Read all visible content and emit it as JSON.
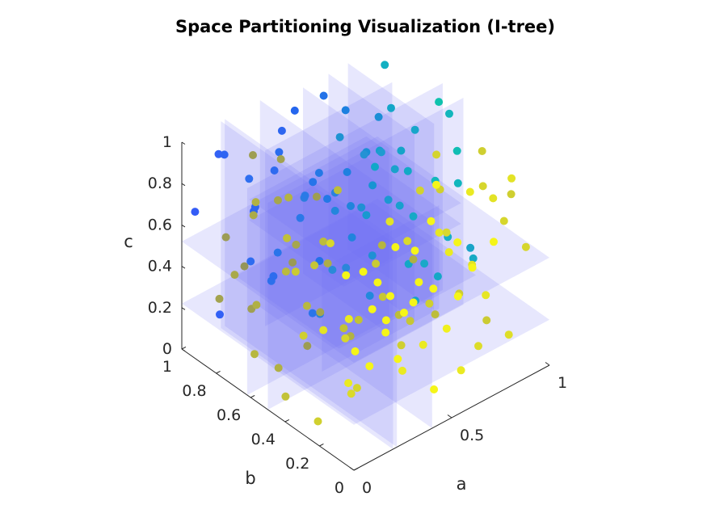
{
  "chart_data": {
    "type": "scatter",
    "subtype": "3d-scatter-with-partition-planes",
    "title": "Space Partitioning Visualization (I-tree)",
    "xlabel": "a",
    "ylabel": "b",
    "zlabel": "c",
    "xlim": [
      0,
      1
    ],
    "ylim": [
      0,
      1
    ],
    "zlim": [
      0,
      1
    ],
    "xticks": [
      "0",
      "0.5",
      "1"
    ],
    "yticks": [
      "0",
      "0.2",
      "0.4",
      "0.6",
      "0.8",
      "1"
    ],
    "zticks": [
      "0",
      "0.2",
      "0.4",
      "0.6",
      "0.8",
      "1"
    ],
    "grid": false,
    "legend": "none",
    "colormap": "parula",
    "colors": {
      "plane_fill": "#6f6ff5",
      "axis": "#262626",
      "title": "#000000"
    },
    "partition_planes": [
      {
        "axis": "a",
        "value": 0.2,
        "b_range": [
          0,
          1
        ],
        "c_range": [
          0,
          1
        ]
      },
      {
        "axis": "a",
        "value": 0.22,
        "b_range": [
          0,
          1
        ],
        "c_range": [
          0,
          1
        ]
      },
      {
        "axis": "a",
        "value": 0.4,
        "b_range": [
          0,
          1
        ],
        "c_range": [
          0,
          1
        ]
      },
      {
        "axis": "b",
        "value": 0.5,
        "a_range": [
          0,
          1
        ],
        "c_range": [
          0,
          1
        ]
      },
      {
        "axis": "b",
        "value": 0.62,
        "a_range": [
          0,
          1
        ],
        "c_range": [
          0,
          1
        ]
      },
      {
        "axis": "c",
        "value": 0.22,
        "a_range": [
          0,
          1
        ],
        "b_range": [
          0,
          1
        ]
      },
      {
        "axis": "c",
        "value": 0.52,
        "a_range": [
          0,
          1
        ],
        "b_range": [
          0,
          1
        ]
      },
      {
        "axis": "a",
        "value": 0.62,
        "b_range": [
          0.5,
          1
        ],
        "c_range": [
          0.05,
          0.95
        ]
      },
      {
        "axis": "a",
        "value": 0.75,
        "b_range": [
          0.5,
          1
        ],
        "c_range": [
          0.05,
          0.95
        ]
      },
      {
        "axis": "b",
        "value": 0.8,
        "a_range": [
          0.25,
          0.9
        ],
        "c_range": [
          0.1,
          0.95
        ]
      },
      {
        "axis": "a",
        "value": 0.85,
        "b_range": [
          0.5,
          1
        ],
        "c_range": [
          0.05,
          0.95
        ]
      },
      {
        "axis": "c",
        "value": 0.5,
        "a_range": [
          0.3,
          0.9
        ],
        "b_range": [
          0.4,
          0.95
        ]
      },
      {
        "axis": "c",
        "value": 0.6,
        "a_range": [
          0.3,
          0.9
        ],
        "b_range": [
          0.4,
          0.95
        ]
      },
      {
        "axis": "b",
        "value": 0.3,
        "a_range": [
          0.1,
          0.7
        ],
        "c_range": [
          0.25,
          0.75
        ]
      },
      {
        "axis": "c",
        "value": 0.42,
        "a_range": [
          0.1,
          0.8
        ],
        "b_range": [
          0.2,
          0.8
        ]
      }
    ],
    "points": [
      {
        "a": 0.05,
        "b": 0.05,
        "c": 0.52,
        "color": "#f5f519"
      },
      {
        "a": 0.08,
        "b": 0.12,
        "c": 0.62,
        "color": "#eaea22"
      },
      {
        "a": 0.12,
        "b": 0.03,
        "c": 0.7,
        "color": "#f5f519"
      },
      {
        "a": 0.15,
        "b": 0.08,
        "c": 0.38,
        "color": "#f5f519"
      },
      {
        "a": 0.02,
        "b": 0.2,
        "c": 0.55,
        "color": "#e3e326"
      },
      {
        "a": 0.18,
        "b": 0.15,
        "c": 0.78,
        "color": "#f5f519"
      },
      {
        "a": 0.2,
        "b": 0.04,
        "c": 0.6,
        "color": "#f5f519"
      },
      {
        "a": 0.25,
        "b": 0.1,
        "c": 0.48,
        "color": "#f5f519"
      },
      {
        "a": 0.1,
        "b": 0.25,
        "c": 0.9,
        "color": "#d8d82c"
      },
      {
        "a": 0.3,
        "b": 0.05,
        "c": 0.58,
        "color": "#f5f519"
      },
      {
        "a": 0.28,
        "b": 0.18,
        "c": 0.66,
        "color": "#f5f519"
      },
      {
        "a": 0.35,
        "b": 0.02,
        "c": 0.72,
        "color": "#f5f519"
      },
      {
        "a": 0.05,
        "b": 0.35,
        "c": 0.42,
        "color": "#cfcf30"
      },
      {
        "a": 0.4,
        "b": 0.1,
        "c": 0.8,
        "color": "#f5f519"
      },
      {
        "a": 0.38,
        "b": 0.22,
        "c": 0.52,
        "color": "#f5f519"
      },
      {
        "a": 0.45,
        "b": 0.05,
        "c": 0.62,
        "color": "#f5f519"
      },
      {
        "a": 0.22,
        "b": 0.3,
        "c": 0.35,
        "color": "#d6d62d"
      },
      {
        "a": 0.5,
        "b": 0.12,
        "c": 0.88,
        "color": "#f5f519"
      },
      {
        "a": 0.48,
        "b": 0.2,
        "c": 0.45,
        "color": "#f5f519"
      },
      {
        "a": 0.55,
        "b": 0.02,
        "c": 0.55,
        "color": "#f5f519"
      },
      {
        "a": 0.15,
        "b": 0.4,
        "c": 0.68,
        "color": "#c6c636"
      },
      {
        "a": 0.6,
        "b": 0.08,
        "c": 0.75,
        "color": "#f5f519"
      },
      {
        "a": 0.58,
        "b": 0.18,
        "c": 0.98,
        "color": "#f5f519"
      },
      {
        "a": 0.65,
        "b": 0.05,
        "c": 0.62,
        "color": "#f5f519"
      },
      {
        "a": 0.08,
        "b": 0.48,
        "c": 0.8,
        "color": "#c0c03a"
      },
      {
        "a": 0.7,
        "b": 0.12,
        "c": 0.92,
        "color": "#eaea22"
      },
      {
        "a": 0.68,
        "b": 0.22,
        "c": 0.58,
        "color": "#eaea22"
      },
      {
        "a": 0.75,
        "b": 0.04,
        "c": 0.7,
        "color": "#f5f519"
      },
      {
        "a": 0.3,
        "b": 0.4,
        "c": 0.3,
        "color": "#c2c234"
      },
      {
        "a": 0.8,
        "b": 0.1,
        "c": 0.85,
        "color": "#e3e326"
      },
      {
        "a": 0.78,
        "b": 0.2,
        "c": 0.48,
        "color": "#e3e326"
      },
      {
        "a": 0.85,
        "b": 0.05,
        "c": 0.95,
        "color": "#e3e326"
      },
      {
        "a": 0.2,
        "b": 0.5,
        "c": 0.4,
        "color": "#b8b840"
      },
      {
        "a": 0.9,
        "b": 0.15,
        "c": 0.66,
        "color": "#d6d62d"
      },
      {
        "a": 0.88,
        "b": 0.25,
        "c": 0.78,
        "color": "#d6d62d"
      },
      {
        "a": 0.95,
        "b": 0.08,
        "c": 0.55,
        "color": "#d6d62d"
      },
      {
        "a": 0.02,
        "b": 0.6,
        "c": 0.2,
        "color": "#b7b73f"
      },
      {
        "a": 0.92,
        "b": 0.3,
        "c": 0.9,
        "color": "#cfcf30"
      },
      {
        "a": 0.98,
        "b": 0.2,
        "c": 0.72,
        "color": "#cfcf30"
      },
      {
        "a": 0.35,
        "b": 0.55,
        "c": 0.5,
        "color": "#adad48"
      },
      {
        "a": 0.1,
        "b": 0.68,
        "c": 0.35,
        "color": "#b0b044"
      },
      {
        "a": 0.42,
        "b": 0.45,
        "c": 0.25,
        "color": "#c2c234"
      },
      {
        "a": 0.25,
        "b": 0.62,
        "c": 0.6,
        "color": "#a6a64e"
      },
      {
        "a": 0.05,
        "b": 0.75,
        "c": 0.48,
        "color": "#a9a94a"
      },
      {
        "a": 0.5,
        "b": 0.4,
        "c": 0.35,
        "color": "#c6c636"
      },
      {
        "a": 0.18,
        "b": 0.8,
        "c": 0.22,
        "color": "#a0a052"
      },
      {
        "a": 0.55,
        "b": 0.35,
        "c": 0.12,
        "color": "#cfcf30"
      },
      {
        "a": 0.32,
        "b": 0.72,
        "c": 0.42,
        "color": "#9a9a56"
      },
      {
        "a": 0.6,
        "b": 0.42,
        "c": 0.2,
        "color": "#bdbd3a"
      },
      {
        "a": 0.12,
        "b": 0.88,
        "c": 0.55,
        "color": "#9c9c55"
      },
      {
        "a": 0.65,
        "b": 0.3,
        "c": 0.3,
        "color": "#cfcf30"
      },
      {
        "a": 0.4,
        "b": 0.65,
        "c": 0.18,
        "color": "#a4a44f"
      },
      {
        "a": 0.7,
        "b": 0.45,
        "c": 0.4,
        "color": "#b0b044"
      },
      {
        "a": 0.25,
        "b": 0.92,
        "c": 0.32,
        "color": "#95955a"
      },
      {
        "a": 0.75,
        "b": 0.38,
        "c": 0.15,
        "color": "#bdbd3a"
      },
      {
        "a": 0.45,
        "b": 0.8,
        "c": 0.62,
        "color": "#2b7ee0"
      },
      {
        "a": 0.8,
        "b": 0.5,
        "c": 0.3,
        "color": "#1aa8c8"
      },
      {
        "a": 0.3,
        "b": 0.95,
        "c": 0.7,
        "color": "#2f6ff0"
      },
      {
        "a": 0.85,
        "b": 0.42,
        "c": 0.45,
        "color": "#17b0c4"
      },
      {
        "a": 0.5,
        "b": 0.88,
        "c": 0.45,
        "color": "#2a78e8"
      },
      {
        "a": 0.9,
        "b": 0.55,
        "c": 0.62,
        "color": "#12b8bb"
      },
      {
        "a": 0.55,
        "b": 0.75,
        "c": 0.25,
        "color": "#2a8ad8"
      },
      {
        "a": 0.95,
        "b": 0.48,
        "c": 0.78,
        "color": "#10bdb4"
      },
      {
        "a": 0.6,
        "b": 0.92,
        "c": 0.55,
        "color": "#2574ea"
      },
      {
        "a": 0.98,
        "b": 0.62,
        "c": 0.92,
        "color": "#0fc2ad"
      },
      {
        "a": 0.65,
        "b": 0.82,
        "c": 0.8,
        "color": "#1f93d2"
      },
      {
        "a": 0.92,
        "b": 0.7,
        "c": 0.35,
        "color": "#16a9c6"
      },
      {
        "a": 0.7,
        "b": 0.95,
        "c": 0.4,
        "color": "#2278e6"
      },
      {
        "a": 0.88,
        "b": 0.85,
        "c": 0.6,
        "color": "#139fcc"
      },
      {
        "a": 0.75,
        "b": 0.78,
        "c": 0.7,
        "color": "#1a8ed6"
      },
      {
        "a": 0.95,
        "b": 0.9,
        "c": 0.95,
        "color": "#12b0c2"
      },
      {
        "a": 0.8,
        "b": 0.92,
        "c": 0.18,
        "color": "#2084dd"
      },
      {
        "a": 0.85,
        "b": 0.75,
        "c": 0.88,
        "color": "#14a6c8"
      },
      {
        "a": 0.98,
        "b": 0.8,
        "c": 0.48,
        "color": "#11aac6"
      },
      {
        "a": 0.2,
        "b": 0.98,
        "c": 0.85,
        "color": "#2f64f2"
      },
      {
        "a": 0.38,
        "b": 0.85,
        "c": 0.95,
        "color": "#2d66f0"
      },
      {
        "a": 0.48,
        "b": 0.98,
        "c": 0.72,
        "color": "#2a6cee"
      },
      {
        "a": 0.58,
        "b": 0.6,
        "c": 0.88,
        "color": "#2592d4"
      },
      {
        "a": 0.68,
        "b": 0.68,
        "c": 0.1,
        "color": "#2189dc"
      },
      {
        "a": 0.72,
        "b": 0.58,
        "c": 0.75,
        "color": "#1aa2cc"
      },
      {
        "a": 0.15,
        "b": 0.95,
        "c": 0.12,
        "color": "#3260f5"
      },
      {
        "a": 0.05,
        "b": 0.98,
        "c": 0.65,
        "color": "#345cf6"
      },
      {
        "a": 0.28,
        "b": 0.78,
        "c": 0.85,
        "color": "#2e6af0"
      },
      {
        "a": 0.42,
        "b": 0.92,
        "c": 0.3,
        "color": "#2a74ea"
      },
      {
        "a": 0.52,
        "b": 0.7,
        "c": 0.58,
        "color": "#2486dc"
      },
      {
        "a": 0.62,
        "b": 0.88,
        "c": 0.98,
        "color": "#2372e8"
      },
      {
        "a": 0.78,
        "b": 0.62,
        "c": 0.52,
        "color": "#18a0ce"
      },
      {
        "a": 0.82,
        "b": 0.98,
        "c": 0.75,
        "color": "#1c80e0"
      },
      {
        "a": 0.9,
        "b": 0.95,
        "c": 0.22,
        "color": "#1899d0"
      },
      {
        "a": 0.35,
        "b": 0.98,
        "c": 0.5,
        "color": "#2c64f2"
      },
      {
        "a": 0.45,
        "b": 0.62,
        "c": 0.75,
        "color": "#2a82de"
      },
      {
        "a": 0.58,
        "b": 0.5,
        "c": 0.95,
        "color": "#1e9cd0"
      },
      {
        "a": 0.66,
        "b": 0.55,
        "c": 0.65,
        "color": "#1c98d2"
      },
      {
        "a": 0.1,
        "b": 0.9,
        "c": 0.95,
        "color": "#3362f5"
      },
      {
        "a": 0.22,
        "b": 0.85,
        "c": 0.4,
        "color": "#2e6cf0"
      },
      {
        "a": 0.32,
        "b": 0.58,
        "c": 0.82,
        "color": "#9e9e53"
      },
      {
        "a": 0.42,
        "b": 0.35,
        "c": 0.58,
        "color": "#caca34"
      },
      {
        "a": 0.52,
        "b": 0.28,
        "c": 0.68,
        "color": "#dada2b"
      },
      {
        "a": 0.62,
        "b": 0.32,
        "c": 0.85,
        "color": "#d2d22f"
      },
      {
        "a": 0.72,
        "b": 0.28,
        "c": 0.62,
        "color": "#d8d82c"
      },
      {
        "a": 0.82,
        "b": 0.32,
        "c": 0.25,
        "color": "#cdcd31"
      },
      {
        "a": 0.15,
        "b": 0.55,
        "c": 0.92,
        "color": "#b4b442"
      },
      {
        "a": 0.02,
        "b": 0.42,
        "c": 0.1,
        "color": "#c2c238"
      },
      {
        "a": 0.08,
        "b": 0.3,
        "c": 0.02,
        "color": "#d0d02f"
      },
      {
        "a": 0.18,
        "b": 0.22,
        "c": 0.15,
        "color": "#dada2a"
      },
      {
        "a": 0.28,
        "b": 0.3,
        "c": 0.08,
        "color": "#d4d42d"
      },
      {
        "a": 0.38,
        "b": 0.15,
        "c": 0.2,
        "color": "#eaea22"
      },
      {
        "a": 0.48,
        "b": 0.08,
        "c": 0.1,
        "color": "#f5f519"
      },
      {
        "a": 0.58,
        "b": 0.12,
        "c": 0.32,
        "color": "#f0f01d"
      },
      {
        "a": 0.68,
        "b": 0.15,
        "c": 0.05,
        "color": "#eaea22"
      },
      {
        "a": 0.78,
        "b": 0.12,
        "c": 0.38,
        "color": "#e6e624"
      },
      {
        "a": 0.88,
        "b": 0.1,
        "c": 0.15,
        "color": "#dede28"
      },
      {
        "a": 0.96,
        "b": 0.32,
        "c": 0.05,
        "color": "#cbcb33"
      },
      {
        "a": 0.98,
        "b": 0.42,
        "c": 0.28,
        "color": "#18aac4"
      },
      {
        "a": 0.94,
        "b": 0.58,
        "c": 0.12,
        "color": "#14a8c6"
      },
      {
        "a": 0.86,
        "b": 0.62,
        "c": 0.02,
        "color": "#16a2ca"
      },
      {
        "a": 0.76,
        "b": 0.72,
        "c": 0.9,
        "color": "#1b8ed6"
      },
      {
        "a": 0.66,
        "b": 0.95,
        "c": 0.12,
        "color": "#2370e8"
      },
      {
        "a": 0.56,
        "b": 0.98,
        "c": 0.88,
        "color": "#2566ee"
      },
      {
        "a": 0.46,
        "b": 0.72,
        "c": 0.1,
        "color": "#2a80de"
      },
      {
        "a": 0.36,
        "b": 0.68,
        "c": 0.02,
        "color": "#9c9c54"
      },
      {
        "a": 0.26,
        "b": 0.72,
        "c": 0.95,
        "color": "#a2a250"
      },
      {
        "a": 0.16,
        "b": 0.62,
        "c": 0.05,
        "color": "#b0b044"
      },
      {
        "a": 0.06,
        "b": 0.85,
        "c": 0.3,
        "color": "#a3a34f"
      },
      {
        "a": 0.12,
        "b": 0.72,
        "c": 0.75,
        "color": "#abab49"
      },
      {
        "a": 0.24,
        "b": 0.45,
        "c": 0.72,
        "color": "#bcbc3c"
      },
      {
        "a": 0.34,
        "b": 0.48,
        "c": 0.9,
        "color": "#bdbd3b"
      },
      {
        "a": 0.44,
        "b": 0.52,
        "c": 0.12,
        "color": "#b2b243"
      },
      {
        "a": 0.54,
        "b": 0.45,
        "c": 0.55,
        "color": "#b6b640"
      },
      {
        "a": 0.64,
        "b": 0.62,
        "c": 0.35,
        "color": "#1f90d4"
      },
      {
        "a": 0.74,
        "b": 0.88,
        "c": 0.55,
        "color": "#1e80e0"
      },
      {
        "a": 0.84,
        "b": 0.68,
        "c": 0.72,
        "color": "#15a4c8"
      },
      {
        "a": 0.94,
        "b": 0.75,
        "c": 0.08,
        "color": "#12a8c6"
      },
      {
        "a": 0.97,
        "b": 0.98,
        "c": 0.4,
        "color": "#10a8c8"
      },
      {
        "a": 0.87,
        "b": 0.88,
        "c": 0.42,
        "color": "#1694d2"
      },
      {
        "a": 0.77,
        "b": 0.52,
        "c": 0.95,
        "color": "#18a6ca"
      },
      {
        "a": 0.67,
        "b": 0.78,
        "c": 0.48,
        "color": "#2084dc"
      },
      {
        "a": 0.57,
        "b": 0.85,
        "c": 0.65,
        "color": "#2478e6"
      },
      {
        "a": 0.47,
        "b": 0.58,
        "c": 0.4,
        "color": "#2a86da"
      },
      {
        "a": 0.37,
        "b": 0.9,
        "c": 0.2,
        "color": "#2c70ec"
      },
      {
        "a": 0.27,
        "b": 0.88,
        "c": 0.62,
        "color": "#2e66f0"
      },
      {
        "a": 0.17,
        "b": 0.78,
        "c": 0.98,
        "color": "#9e9e53"
      },
      {
        "a": 0.07,
        "b": 0.65,
        "c": 0.88,
        "color": "#b2b243"
      },
      {
        "a": 0.03,
        "b": 0.08,
        "c": 0.88,
        "color": "#f5f519"
      },
      {
        "a": 0.13,
        "b": 0.18,
        "c": 0.25,
        "color": "#eaea22"
      },
      {
        "a": 0.23,
        "b": 0.02,
        "c": 0.95,
        "color": "#f5f519"
      },
      {
        "a": 0.33,
        "b": 0.12,
        "c": 0.3,
        "color": "#f5f519"
      },
      {
        "a": 0.43,
        "b": 0.28,
        "c": 0.82,
        "color": "#e2e227"
      },
      {
        "a": 0.53,
        "b": 0.2,
        "c": 0.22,
        "color": "#eaea22"
      },
      {
        "a": 0.63,
        "b": 0.22,
        "c": 0.7,
        "color": "#e6e624"
      },
      {
        "a": 0.73,
        "b": 0.35,
        "c": 0.95,
        "color": "#d4d42e"
      },
      {
        "a": 0.83,
        "b": 0.22,
        "c": 0.05,
        "color": "#dcdc29"
      },
      {
        "a": 0.93,
        "b": 0.38,
        "c": 0.38,
        "color": "#1aa4c8"
      },
      {
        "a": 0.99,
        "b": 0.52,
        "c": 0.58,
        "color": "#11b6bc"
      },
      {
        "a": 0.91,
        "b": 0.48,
        "c": 0.98,
        "color": "#12b6bc"
      },
      {
        "a": 0.81,
        "b": 0.42,
        "c": 0.7,
        "color": "#d0d02f"
      },
      {
        "a": 0.71,
        "b": 0.48,
        "c": 0.08,
        "color": "#c6c636"
      },
      {
        "a": 0.61,
        "b": 0.65,
        "c": 0.58,
        "color": "#2090d4"
      },
      {
        "a": 0.51,
        "b": 0.82,
        "c": 0.02,
        "color": "#2a74ea"
      },
      {
        "a": 0.41,
        "b": 0.75,
        "c": 0.68,
        "color": "#2a7ae6"
      },
      {
        "a": 0.31,
        "b": 0.82,
        "c": 0.3,
        "color": "#2d6cee"
      },
      {
        "a": 0.21,
        "b": 0.68,
        "c": 0.8,
        "color": "#a6a64d"
      },
      {
        "a": 0.11,
        "b": 0.52,
        "c": 0.6,
        "color": "#baba3e"
      },
      {
        "a": 0.01,
        "b": 0.35,
        "c": 0.75,
        "color": "#caca33"
      }
    ]
  }
}
